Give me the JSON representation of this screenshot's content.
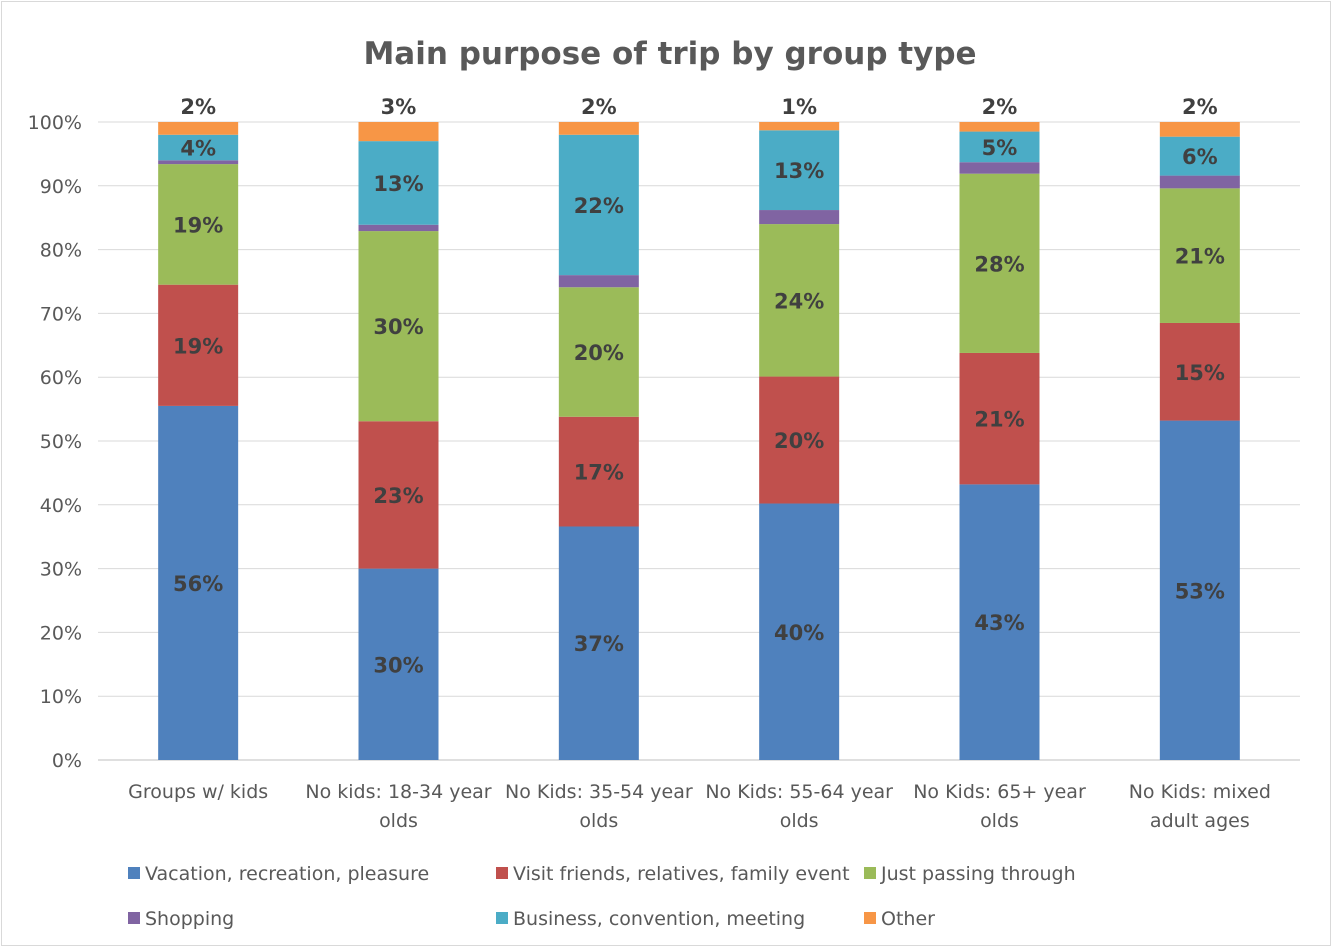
{
  "chart_data": {
    "type": "bar",
    "stacked": true,
    "title": "Main purpose of trip by group type",
    "categories": [
      [
        "Groups w/ kids"
      ],
      [
        "No kids: 18-34 year",
        "olds"
      ],
      [
        "No Kids: 35-54 year",
        "olds"
      ],
      [
        "No Kids: 55-64 year",
        "olds"
      ],
      [
        "No Kids: 65+ year",
        "olds"
      ],
      [
        "No Kids: mixed",
        "adult ages"
      ]
    ],
    "ylim": [
      0,
      100
    ],
    "yticks": [
      "0%",
      "10%",
      "20%",
      "30%",
      "40%",
      "50%",
      "60%",
      "70%",
      "80%",
      "90%",
      "100%"
    ],
    "grid": true,
    "legend_position": "bottom",
    "series": [
      {
        "name": "Vacation, recreation, pleasure",
        "color": "#4f81bd",
        "values": [
          55.5,
          30,
          36.6,
          40.2,
          43.2,
          53.2
        ],
        "labels": [
          "56%",
          "30%",
          "37%",
          "40%",
          "43%",
          "53%"
        ]
      },
      {
        "name": "Visit friends, relatives, family event",
        "color": "#c0504d",
        "values": [
          19,
          23.1,
          17.2,
          19.9,
          20.6,
          15.3
        ],
        "labels": [
          "19%",
          "23%",
          "17%",
          "20%",
          "21%",
          "15%"
        ]
      },
      {
        "name": "Just passing through",
        "color": "#9bbb59",
        "values": [
          18.9,
          29.8,
          20.3,
          23.9,
          28.1,
          21.1
        ],
        "labels": [
          "19%",
          "30%",
          "20%",
          "24%",
          "28%",
          "21%"
        ]
      },
      {
        "name": "Shopping",
        "color": "#8064a2",
        "values": [
          0.6,
          1,
          1.9,
          2.2,
          1.8,
          2
        ],
        "labels": [
          "",
          "",
          "",
          "",
          "",
          ""
        ]
      },
      {
        "name": "Business, convention, meeting",
        "color": "#4bacc6",
        "values": [
          4,
          13.1,
          22,
          12.5,
          4.8,
          6.1
        ],
        "labels": [
          "4%",
          "13%",
          "22%",
          "13%",
          "5%",
          "6%"
        ]
      },
      {
        "name": "Other",
        "color": "#f79646",
        "values": [
          2,
          3,
          2,
          1.3,
          1.5,
          2.3
        ],
        "labels": [
          "2%",
          "3%",
          "2%",
          "1%",
          "2%",
          "2%"
        ]
      }
    ]
  }
}
